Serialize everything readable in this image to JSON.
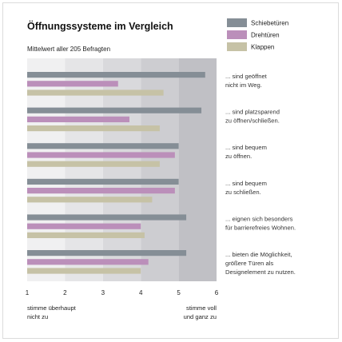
{
  "chart_data": {
    "type": "bar",
    "orientation": "horizontal",
    "title": "Öffnungssysteme im Vergleich",
    "subtitle": "Mittelwert aller 205 Befragten",
    "xlim": [
      1,
      6
    ],
    "ticks": [
      "1",
      "2",
      "3",
      "4",
      "5",
      "6"
    ],
    "anchor_left": [
      "stimme überhaupt",
      "nicht zu"
    ],
    "anchor_right": [
      "stimme voll",
      "und ganz zu"
    ],
    "legend_position": "top-right",
    "categories": [
      [
        "... sind geöffnet",
        "nicht im Weg."
      ],
      [
        "... sind platzsparend",
        "zu öffnen/schließen."
      ],
      [
        "... sind bequem",
        "zu öffnen."
      ],
      [
        "... sind bequem",
        "zu schließen."
      ],
      [
        "... eignen sich besonders",
        "für barrierefreies Wohnen."
      ],
      [
        "... bieten die Möglichkeit,",
        "größere Türen als",
        "Designelement zu nutzen."
      ]
    ],
    "series": [
      {
        "name": "Schiebetüren",
        "color": "#858e96",
        "values": [
          5.7,
          5.6,
          5.0,
          5.0,
          5.2,
          5.2
        ]
      },
      {
        "name": "Drehtüren",
        "color": "#bb8fba",
        "values": [
          3.4,
          3.7,
          4.9,
          4.9,
          4.0,
          4.2
        ]
      },
      {
        "name": "Klappen",
        "color": "#c6c2a6",
        "values": [
          4.6,
          4.5,
          4.5,
          4.3,
          4.1,
          4.0
        ]
      }
    ]
  }
}
